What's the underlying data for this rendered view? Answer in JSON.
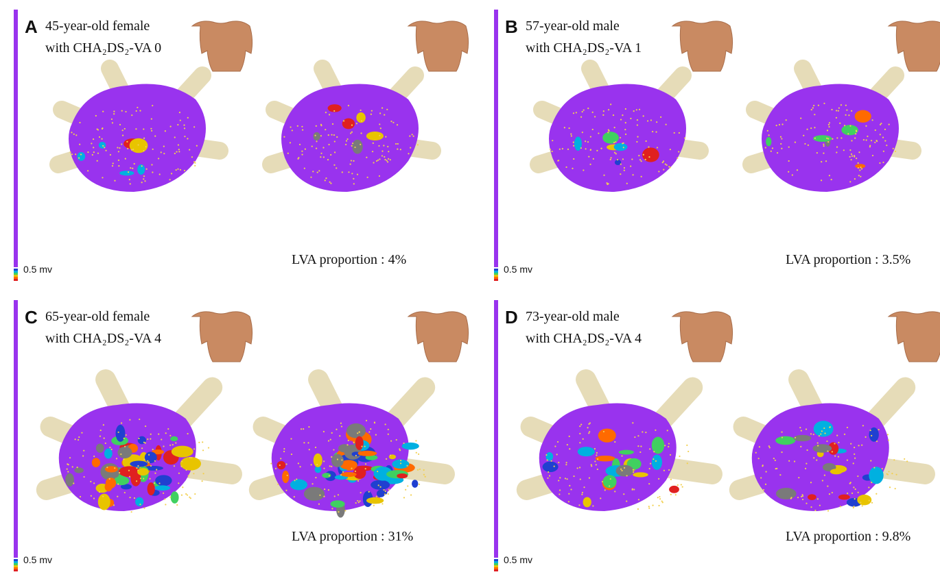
{
  "panels": [
    {
      "letter": "A",
      "line1": "45-year-old female",
      "line2": "with CHA₂DS₂-VA 0",
      "scale_label": "0.5 mv",
      "lva": "LVA proportion : 4%"
    },
    {
      "letter": "B",
      "line1": "57-year-old male",
      "line2": "with CHA₂DS₂-VA 1",
      "scale_label": "0.5 mv",
      "lva": "LVA proportion : 3.5%"
    },
    {
      "letter": "C",
      "line1": "65-year-old female",
      "line2": "with CHA₂DS₂-VA 4",
      "scale_label": "0.5 mv",
      "lva": "LVA proportion : 31%"
    },
    {
      "letter": "D",
      "line1": "73-year-old male",
      "line2": "with CHA₂DS₂-VA 4",
      "scale_label": "0.5 mv",
      "lva": "LVA proportion : 9.8%"
    }
  ]
}
